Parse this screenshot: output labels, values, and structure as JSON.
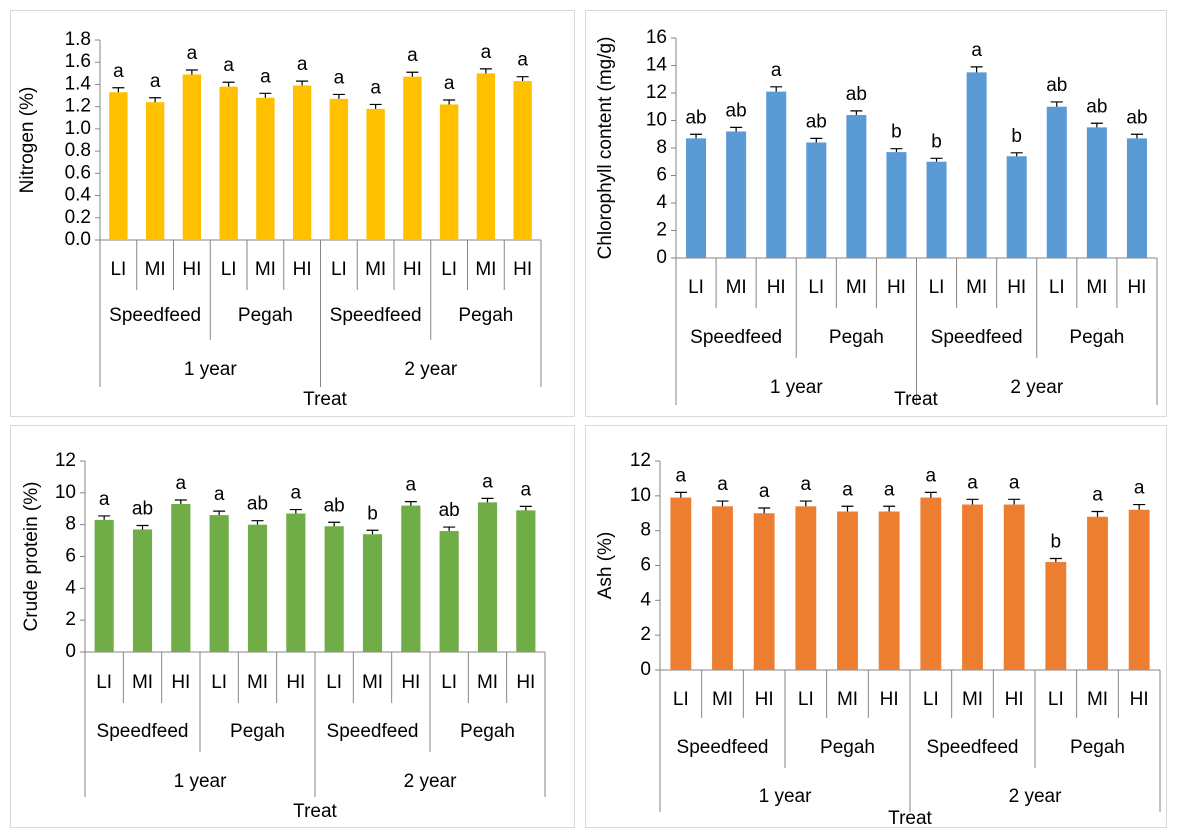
{
  "chart_data": [
    {
      "type": "bar",
      "y_label": "Nitrogen (%)",
      "x_label": "Treat",
      "categories": [
        "LI",
        "MI",
        "HI",
        "LI",
        "MI",
        "HI",
        "LI",
        "MI",
        "HI",
        "LI",
        "MI",
        "HI"
      ],
      "groups": [
        "Speedfeed",
        "Pegah",
        "Speedfeed",
        "Pegah"
      ],
      "years": [
        "1 year",
        "2 year"
      ],
      "values": [
        1.33,
        1.24,
        1.49,
        1.38,
        1.28,
        1.39,
        1.27,
        1.18,
        1.47,
        1.22,
        1.5,
        1.43
      ],
      "errors": [
        0.04,
        0.04,
        0.04,
        0.04,
        0.04,
        0.04,
        0.04,
        0.04,
        0.04,
        0.04,
        0.04,
        0.04
      ],
      "letters": [
        "a",
        "a",
        "a",
        "a",
        "a",
        "a",
        "a",
        "a",
        "a",
        "a",
        "a",
        "a"
      ],
      "color": "#ffc000",
      "ylim": [
        0,
        1.8
      ],
      "yticks": [
        {
          "value": 0,
          "label": "0.0"
        },
        0.2,
        0.4,
        0.6,
        0.8,
        {
          "value": 1,
          "label": "1.0"
        },
        1.2,
        1.4,
        1.6,
        1.8
      ]
    },
    {
      "type": "bar",
      "y_label": "Chlorophyll content (mg/g)",
      "x_label": "Treat",
      "categories": [
        "LI",
        "MI",
        "HI",
        "LI",
        "MI",
        "HI",
        "LI",
        "MI",
        "HI",
        "LI",
        "MI",
        "HI"
      ],
      "groups": [
        "Speedfeed",
        "Pegah",
        "Speedfeed",
        "Pegah"
      ],
      "years": [
        "1 year",
        "2 year"
      ],
      "values": [
        8.7,
        9.2,
        12.1,
        8.4,
        10.4,
        7.7,
        7.0,
        13.5,
        7.4,
        11.0,
        9.5,
        8.7
      ],
      "errors": [
        0.3,
        0.3,
        0.35,
        0.3,
        0.3,
        0.25,
        0.25,
        0.4,
        0.25,
        0.35,
        0.3,
        0.3
      ],
      "letters": [
        "ab",
        "ab",
        "a",
        "ab",
        "ab",
        "b",
        "b",
        "a",
        "b",
        "ab",
        "ab",
        "ab"
      ],
      "color": "#5b9bd5",
      "ylim": [
        0,
        16
      ],
      "yticks": [
        0,
        2,
        4,
        6,
        8,
        10,
        12,
        14,
        16
      ]
    },
    {
      "type": "bar",
      "y_label": "Crude protein (%)",
      "x_label": "Treat",
      "categories": [
        "LI",
        "MI",
        "HI",
        "LI",
        "MI",
        "HI",
        "LI",
        "MI",
        "HI",
        "LI",
        "MI",
        "HI"
      ],
      "groups": [
        "Speedfeed",
        "Pegah",
        "Speedfeed",
        "Pegah"
      ],
      "years": [
        "1 year",
        "2 year"
      ],
      "values": [
        8.3,
        7.7,
        9.3,
        8.6,
        8.0,
        8.7,
        7.9,
        7.4,
        9.2,
        7.6,
        9.4,
        8.9
      ],
      "errors": [
        0.25,
        0.25,
        0.25,
        0.25,
        0.25,
        0.25,
        0.25,
        0.25,
        0.25,
        0.25,
        0.25,
        0.25
      ],
      "letters": [
        "a",
        "ab",
        "a",
        "a",
        "ab",
        "a",
        "ab",
        "b",
        "a",
        "ab",
        "a",
        "a"
      ],
      "color": "#70ad47",
      "ylim": [
        0,
        12
      ],
      "yticks": [
        0,
        2,
        4,
        6,
        8,
        10,
        12
      ]
    },
    {
      "type": "bar",
      "y_label": "Ash (%)",
      "x_label": "Treat",
      "categories": [
        "LI",
        "MI",
        "HI",
        "LI",
        "MI",
        "HI",
        "LI",
        "MI",
        "HI",
        "LI",
        "MI",
        "HI"
      ],
      "groups": [
        "Speedfeed",
        "Pegah",
        "Speedfeed",
        "Pegah"
      ],
      "years": [
        "1 year",
        "2 year"
      ],
      "values": [
        9.9,
        9.4,
        9.0,
        9.4,
        9.1,
        9.1,
        9.9,
        9.5,
        9.5,
        6.2,
        8.8,
        9.2
      ],
      "errors": [
        0.3,
        0.3,
        0.3,
        0.3,
        0.3,
        0.3,
        0.3,
        0.3,
        0.3,
        0.2,
        0.3,
        0.3
      ],
      "letters": [
        "a",
        "a",
        "a",
        "a",
        "a",
        "a",
        "a",
        "a",
        "a",
        "b",
        "a",
        "a"
      ],
      "color": "#ed7d31",
      "ylim": [
        0,
        12
      ],
      "yticks": [
        0,
        2,
        4,
        6,
        8,
        10,
        12
      ]
    }
  ]
}
